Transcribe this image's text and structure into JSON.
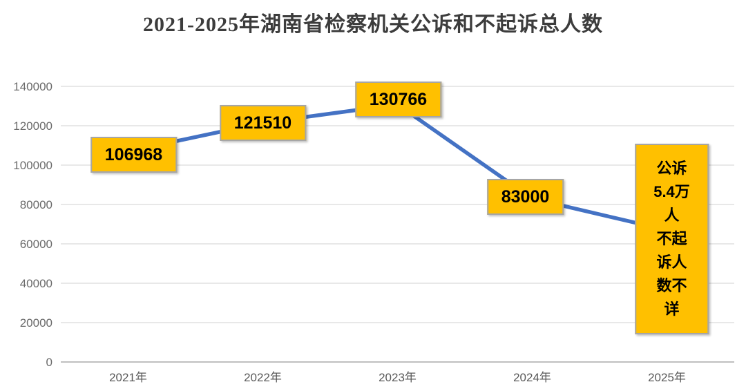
{
  "chart_data": {
    "type": "line",
    "title": "2021-2025年湖南省检察机关公诉和不起诉总人数",
    "categories": [
      "2021年",
      "2022年",
      "2023年",
      "2024年",
      "2025年"
    ],
    "values": [
      106968,
      121510,
      130766,
      83000,
      null
    ],
    "plotted_values": [
      106968,
      121510,
      130766,
      83000,
      67000
    ],
    "point_labels": [
      "106968",
      "121510",
      "130766",
      "83000",
      "公诉5.4万人\n不起诉人数不详"
    ],
    "ylim": [
      0,
      140000
    ],
    "ytick_interval": 20000,
    "yticks": [
      "140000",
      "120000",
      "100000",
      "80000",
      "60000",
      "40000",
      "20000",
      "0"
    ],
    "xlabel": "",
    "ylabel": "",
    "grid": true,
    "legend": "none",
    "colors": {
      "line": "#4472C4",
      "label_box_fill": "#FFC000",
      "label_box_border": "#A6A6A6",
      "label_text": "#000000",
      "gridline": "#E4E4E4",
      "axis_line": "#BFBFBF",
      "axis_text": "#6B6B6B",
      "title_text": "#3C3C3C",
      "background": "#FFFFFF"
    }
  }
}
